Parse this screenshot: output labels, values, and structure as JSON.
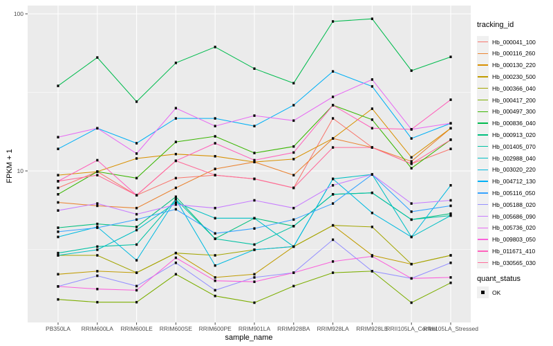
{
  "chart_data": {
    "type": "line",
    "title": "",
    "xlabel": "sample_name",
    "ylabel": "FPKM + 1",
    "y_scale": "log10",
    "ylim": [
      1.13,
      113
    ],
    "grid": true,
    "legend_position": "right",
    "legend_title": "tracking_id",
    "marker": "black-square",
    "y_axis_ticks": [
      {
        "label": "100",
        "value": 100
      },
      {
        "label": "10",
        "value": 10
      }
    ],
    "y_major_gridlines": [
      10,
      100
    ],
    "y_minor_gridlines": [
      3.162,
      31.623
    ],
    "quant_legend": {
      "title": "quant_status",
      "items": [
        {
          "label": "OK",
          "marker": "black-square"
        }
      ]
    },
    "categories": [
      "PB350LA",
      "RRIM600LA",
      "RRIM600LE",
      "RRIM600SE",
      "RRIM600PE",
      "RRIM901LA",
      "RRIM928BA",
      "RRIM928LA",
      "RRIM928LE",
      "RRII105LA_Control",
      "RRII105LA_Stressed"
    ],
    "series": [
      {
        "name": "Hb_000041_100",
        "color": "#F8766D",
        "values": [
          7.8,
          9.9,
          7.0,
          9.0,
          9.4,
          8.9,
          7.8,
          21.6,
          14.1,
          11.1,
          13.8
        ]
      },
      {
        "name": "Hb_000116_260",
        "color": "#EA8331",
        "values": [
          6.3,
          6.0,
          5.8,
          7.8,
          10.3,
          11.4,
          9.4,
          16.1,
          14.1,
          11.5,
          18.7
        ]
      },
      {
        "name": "Hb_000130_220",
        "color": "#D89000",
        "values": [
          9.4,
          9.9,
          12.0,
          12.8,
          12.4,
          11.4,
          11.9,
          16.1,
          24.9,
          12.2,
          18.7
        ]
      },
      {
        "name": "Hb_000230_500",
        "color": "#C09B00",
        "values": [
          2.2,
          2.3,
          2.25,
          3.0,
          2.1,
          2.2,
          3.3,
          4.5,
          2.9,
          2.55,
          2.9
        ]
      },
      {
        "name": "Hb_000366_040",
        "color": "#A3A500",
        "values": [
          2.9,
          2.9,
          2.25,
          3.0,
          2.9,
          3.15,
          3.3,
          4.5,
          4.4,
          2.55,
          2.9
        ]
      },
      {
        "name": "Hb_000417_200",
        "color": "#7CAE00",
        "values": [
          1.52,
          1.46,
          1.46,
          2.2,
          1.6,
          1.45,
          1.85,
          2.25,
          2.3,
          1.45,
          1.94
        ]
      },
      {
        "name": "Hb_000497_300",
        "color": "#39B600",
        "values": [
          7.1,
          9.9,
          9.0,
          15.3,
          16.6,
          13.0,
          14.3,
          26.2,
          21.2,
          10.4,
          15.8
        ]
      },
      {
        "name": "Hb_000836_040",
        "color": "#00BB4E",
        "values": [
          34.8,
          52.7,
          27.6,
          48.7,
          61.5,
          44.8,
          36.2,
          89.4,
          93.0,
          43.5,
          53.2
        ]
      },
      {
        "name": "Hb_000913_020",
        "color": "#00BF7D",
        "values": [
          4.35,
          4.6,
          4.4,
          6.85,
          3.7,
          5.0,
          4.45,
          7.1,
          7.25,
          4.9,
          5.35
        ]
      },
      {
        "name": "Hb_001405_070",
        "color": "#00C1A3",
        "values": [
          3.0,
          3.3,
          3.4,
          6.6,
          3.7,
          3.4,
          4.45,
          7.1,
          7.25,
          4.9,
          5.2
        ]
      },
      {
        "name": "Hb_002988_040",
        "color": "#00BFC4",
        "values": [
          2.9,
          3.15,
          4.2,
          6.3,
          5.0,
          5.0,
          3.3,
          8.9,
          9.5,
          3.8,
          5.2
        ]
      },
      {
        "name": "Hb_003020_220",
        "color": "#00BAE0",
        "values": [
          3.8,
          4.4,
          2.7,
          6.6,
          2.5,
          3.15,
          3.3,
          8.9,
          5.4,
          3.8,
          8.1
        ]
      },
      {
        "name": "Hb_004712_130",
        "color": "#00B0F6",
        "values": [
          13.8,
          18.7,
          15.0,
          21.6,
          21.6,
          19.3,
          26.2,
          43.0,
          34.5,
          16.1,
          20.1
        ]
      },
      {
        "name": "Hb_005116_050",
        "color": "#35A2FF",
        "values": [
          4.1,
          4.35,
          4.9,
          5.7,
          4.0,
          4.3,
          4.9,
          6.2,
          9.5,
          5.5,
          6.0
        ]
      },
      {
        "name": "Hb_005188_020",
        "color": "#9590FF",
        "values": [
          1.84,
          2.15,
          1.85,
          2.6,
          1.74,
          2.1,
          2.25,
          3.65,
          2.3,
          2.07,
          2.6
        ]
      },
      {
        "name": "Hb_005686_090",
        "color": "#C77CFF",
        "values": [
          5.6,
          6.2,
          5.3,
          6.1,
          5.8,
          6.5,
          5.8,
          8.1,
          9.5,
          6.2,
          6.5
        ]
      },
      {
        "name": "Hb_005736_020",
        "color": "#E76BF3",
        "values": [
          16.4,
          18.7,
          12.9,
          25.1,
          19.3,
          22.5,
          20.9,
          29.6,
          38.2,
          18.4,
          20.1
        ]
      },
      {
        "name": "Hb_009803_050",
        "color": "#FA62DB",
        "values": [
          1.84,
          1.77,
          1.74,
          2.8,
          2.0,
          1.97,
          2.25,
          2.65,
          2.86,
          2.07,
          2.1
        ]
      },
      {
        "name": "Hb_011671_410",
        "color": "#FF62BC",
        "values": [
          8.6,
          11.7,
          7.0,
          11.6,
          15.0,
          11.7,
          13.1,
          26.2,
          18.7,
          18.4,
          28.4
        ]
      },
      {
        "name": "Hb_030565_030",
        "color": "#FF6A98",
        "values": [
          8.6,
          9.4,
          7.0,
          11.6,
          9.4,
          8.9,
          7.8,
          14.1,
          14.1,
          11.1,
          15.8
        ]
      }
    ],
    "panel_background": "#EBEBEB",
    "gridline_color": "#FFFFFF",
    "tick_label_color": "#4D4D4D",
    "marker_color": "#0A0A0A"
  }
}
